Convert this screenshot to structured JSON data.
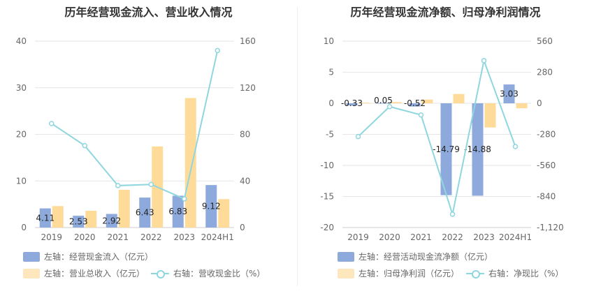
{
  "chart_data": [
    {
      "type": "bar",
      "title": "历年经营现金流入、营业收入情况",
      "categories": [
        "2019",
        "2020",
        "2021",
        "2022",
        "2023",
        "2024H1"
      ],
      "left_axis": {
        "ylim": [
          0,
          40
        ],
        "ticks": [
          "0",
          "10",
          "20",
          "30",
          "40"
        ]
      },
      "right_axis": {
        "ylim": [
          0,
          160
        ],
        "ticks": [
          "0",
          "40",
          "80",
          "120",
          "160"
        ]
      },
      "series": [
        {
          "name": "左轴：经营现金流入（亿元）",
          "kind": "bar",
          "axis": "left",
          "color": "#8eaadc",
          "values": [
            4.11,
            2.53,
            2.92,
            6.43,
            6.83,
            9.12
          ],
          "labels": [
            "4.11",
            "2.53",
            "2.92",
            "6.43",
            "6.83",
            "9.12"
          ]
        },
        {
          "name": "左轴：营业总收入（亿元）",
          "kind": "bar",
          "axis": "left",
          "color": "#ffdb9a",
          "values": [
            4.6,
            3.6,
            8.1,
            17.4,
            27.8,
            6.1
          ]
        },
        {
          "name": "右轴：营收现金比（%）",
          "kind": "line",
          "axis": "right",
          "color": "#8fd6df",
          "values": [
            89.3,
            70.3,
            36.0,
            37.0,
            24.6,
            152.0
          ]
        }
      ],
      "grid": true,
      "legend": "bottom-left"
    },
    {
      "type": "bar",
      "title": "历年经营现金流净额、归母净利润情况",
      "categories": [
        "2019",
        "2020",
        "2021",
        "2022",
        "2023",
        "2024H1"
      ],
      "left_axis": {
        "ylim": [
          -20,
          10
        ],
        "ticks": [
          "-20",
          "-15",
          "-10",
          "-5",
          "0",
          "5",
          "10"
        ]
      },
      "right_axis": {
        "ylim": [
          -1120,
          560
        ],
        "ticks": [
          "-1,120",
          "-840",
          "-560",
          "-280",
          "0",
          "280",
          "560"
        ]
      },
      "series": [
        {
          "name": "左轴：经营活动现金流净额（亿元）",
          "kind": "bar",
          "axis": "left",
          "color": "#8eaadc",
          "values": [
            -0.33,
            0.05,
            -0.52,
            -14.79,
            -14.88,
            3.03
          ],
          "labels": [
            "-0.33",
            "0.05",
            "-0.52",
            "-14.79",
            "-14.88",
            "3.03"
          ]
        },
        {
          "name": "左轴：归母净利润（亿元）",
          "kind": "bar",
          "axis": "left",
          "color": "#ffdb9a",
          "values": [
            0.1,
            0.2,
            0.6,
            1.5,
            -3.9,
            -0.8
          ]
        },
        {
          "name": "右轴：净现比（%）",
          "kind": "line",
          "axis": "right",
          "color": "#8fd6df",
          "values": [
            -300,
            -30,
            -105,
            -1000,
            385,
            -390
          ]
        }
      ],
      "grid": true,
      "legend": "bottom-left"
    }
  ]
}
